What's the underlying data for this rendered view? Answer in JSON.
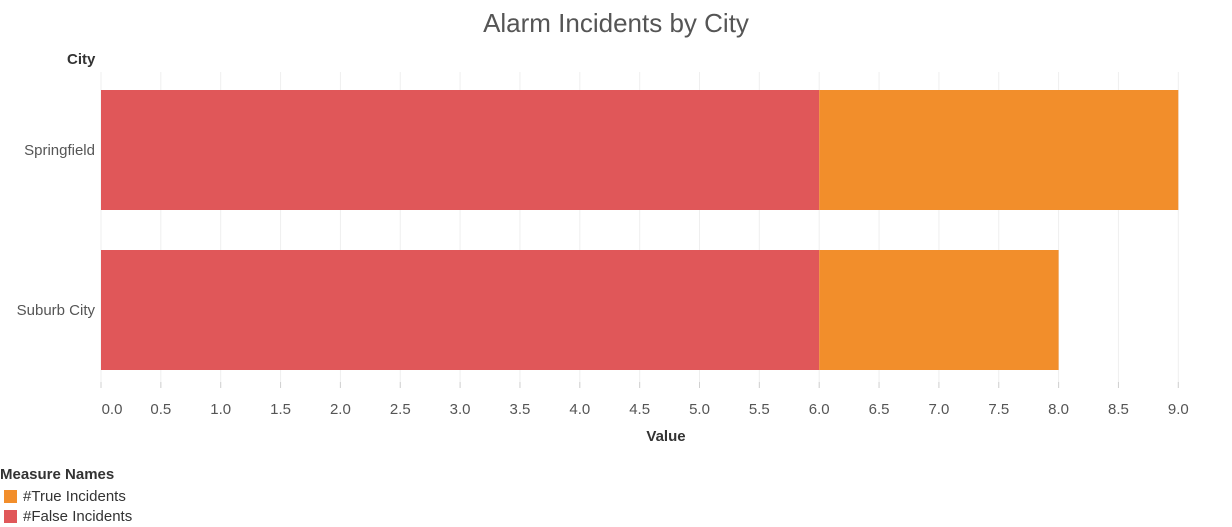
{
  "chart_data": {
    "type": "bar",
    "orientation": "horizontal",
    "stacked": true,
    "title": "Alarm Incidents by City",
    "row_header": "City",
    "categories": [
      "Springfield",
      "Suburb City"
    ],
    "series": [
      {
        "name": "#False Incidents",
        "values": [
          6,
          6
        ],
        "color": "#e05759"
      },
      {
        "name": "#True Incidents",
        "values": [
          3,
          2
        ],
        "color": "#f28e2b"
      }
    ],
    "xlabel": "Value",
    "xlim": [
      0,
      9.5
    ],
    "xticks": [
      "0.0",
      "0.5",
      "1.0",
      "1.5",
      "2.0",
      "2.5",
      "3.0",
      "3.5",
      "4.0",
      "4.5",
      "5.0",
      "5.5",
      "6.0",
      "6.5",
      "7.0",
      "7.5",
      "8.0",
      "8.5",
      "9.0"
    ],
    "grid": true,
    "legend": {
      "title": "Measure Names",
      "placement": "bottom-left",
      "items": [
        {
          "name": "#True Incidents",
          "color": "#f28e2b"
        },
        {
          "name": "#False Incidents",
          "color": "#e05759"
        }
      ]
    }
  }
}
